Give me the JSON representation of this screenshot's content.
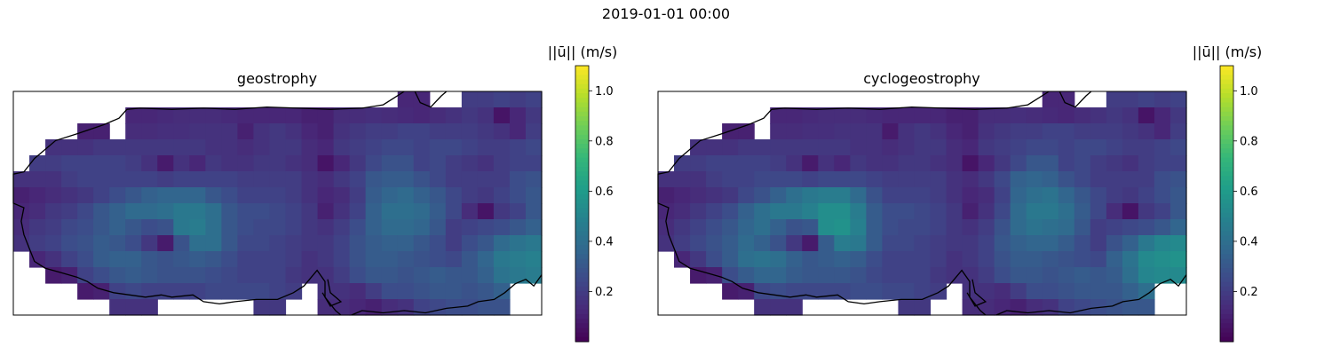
{
  "figure": {
    "suptitle": "2019-01-01 00:00"
  },
  "colors": {
    "viridis": [
      "#440154",
      "#482878",
      "#3e4989",
      "#31688e",
      "#26828e",
      "#1f9e89",
      "#35b779",
      "#6ece58",
      "#b5de2b",
      "#fde725"
    ],
    "coastline": "#000000",
    "frame": "#000000"
  },
  "chart_data": [
    {
      "type": "heatmap",
      "title": "geostrophy",
      "colorbar_label": "||ū|| (m/s)",
      "colorbar_ticks": [
        "0.2",
        "0.4",
        "0.6",
        "0.8",
        "1.0"
      ],
      "clim": [
        0.0,
        1.1
      ],
      "rows": 14,
      "cols": 33,
      "values": [
        [
          null,
          null,
          null,
          null,
          null,
          null,
          null,
          null,
          null,
          null,
          null,
          null,
          null,
          null,
          null,
          null,
          null,
          null,
          null,
          null,
          null,
          null,
          null,
          null,
          0.12,
          0.12,
          null,
          null,
          0.2,
          0.2,
          0.22,
          0.2,
          0.22
        ],
        [
          null,
          null,
          null,
          null,
          null,
          null,
          null,
          0.12,
          0.12,
          0.13,
          0.14,
          0.14,
          0.14,
          0.13,
          0.12,
          0.12,
          0.12,
          0.12,
          0.1,
          0.1,
          0.14,
          0.14,
          0.15,
          0.14,
          0.13,
          0.12,
          0.14,
          0.16,
          0.18,
          0.16,
          0.06,
          0.12,
          0.18
        ],
        [
          null,
          null,
          null,
          null,
          0.1,
          0.1,
          null,
          0.14,
          0.14,
          0.15,
          0.15,
          0.16,
          0.16,
          0.16,
          0.1,
          0.16,
          0.18,
          0.16,
          0.12,
          0.1,
          0.16,
          0.18,
          0.2,
          0.2,
          0.22,
          0.22,
          0.2,
          0.2,
          0.2,
          0.18,
          0.16,
          0.12,
          0.2
        ],
        [
          null,
          null,
          0.16,
          0.16,
          0.16,
          0.18,
          0.18,
          0.18,
          0.18,
          0.18,
          0.18,
          0.18,
          0.16,
          0.16,
          0.14,
          0.16,
          0.18,
          0.18,
          0.14,
          0.12,
          0.18,
          0.2,
          0.22,
          0.24,
          0.24,
          0.22,
          0.24,
          0.24,
          0.22,
          0.2,
          0.2,
          0.22,
          0.24
        ],
        [
          null,
          0.2,
          0.2,
          0.22,
          0.22,
          0.22,
          0.22,
          0.2,
          0.16,
          0.08,
          0.16,
          0.12,
          0.18,
          0.16,
          0.16,
          0.18,
          0.18,
          0.16,
          0.14,
          0.06,
          0.12,
          0.18,
          0.24,
          0.28,
          0.28,
          0.22,
          0.24,
          0.2,
          0.18,
          0.16,
          0.2,
          0.22,
          0.22
        ],
        [
          0.16,
          0.16,
          0.16,
          0.2,
          0.22,
          0.22,
          0.22,
          0.22,
          0.22,
          0.2,
          0.22,
          0.22,
          0.22,
          0.22,
          0.2,
          0.2,
          0.2,
          0.2,
          0.16,
          0.14,
          0.18,
          0.22,
          0.3,
          0.32,
          0.32,
          0.28,
          0.24,
          0.2,
          0.2,
          0.2,
          0.2,
          0.26,
          0.28
        ],
        [
          0.1,
          0.12,
          0.14,
          0.16,
          0.18,
          0.22,
          0.26,
          0.3,
          0.34,
          0.36,
          0.36,
          0.36,
          0.3,
          0.26,
          0.22,
          0.22,
          0.22,
          0.2,
          0.16,
          0.12,
          0.14,
          0.2,
          0.32,
          0.36,
          0.38,
          0.34,
          0.3,
          0.24,
          0.2,
          0.18,
          0.22,
          0.26,
          0.3
        ],
        [
          0.12,
          0.14,
          0.18,
          0.2,
          0.24,
          0.3,
          0.34,
          0.38,
          0.38,
          0.4,
          0.44,
          0.44,
          0.4,
          0.3,
          0.26,
          0.26,
          0.24,
          0.22,
          0.18,
          0.1,
          0.16,
          0.22,
          0.34,
          0.4,
          0.4,
          0.38,
          0.32,
          0.24,
          0.14,
          0.06,
          0.18,
          0.22,
          0.3
        ],
        [
          0.14,
          0.18,
          0.2,
          0.24,
          0.26,
          0.3,
          0.34,
          0.3,
          0.26,
          0.28,
          0.44,
          0.46,
          0.4,
          0.3,
          0.26,
          0.24,
          0.24,
          0.22,
          0.18,
          0.16,
          0.2,
          0.26,
          0.34,
          0.38,
          0.38,
          0.36,
          0.3,
          0.2,
          0.22,
          0.24,
          0.26,
          0.3,
          0.34
        ],
        [
          0.16,
          0.2,
          0.22,
          0.26,
          0.28,
          0.32,
          0.3,
          0.26,
          0.18,
          0.08,
          0.28,
          0.4,
          0.4,
          0.3,
          0.24,
          0.24,
          0.22,
          0.2,
          0.18,
          0.18,
          0.22,
          0.28,
          0.32,
          0.34,
          0.34,
          0.3,
          0.26,
          0.2,
          0.26,
          0.3,
          0.38,
          0.42,
          0.44
        ],
        [
          null,
          0.12,
          0.16,
          0.22,
          0.26,
          0.32,
          0.34,
          0.34,
          0.3,
          0.28,
          0.3,
          0.32,
          0.3,
          0.26,
          0.22,
          0.22,
          0.22,
          0.2,
          0.16,
          0.18,
          0.22,
          0.28,
          0.32,
          0.32,
          0.3,
          0.28,
          0.26,
          0.24,
          0.3,
          0.36,
          0.44,
          0.46,
          0.48
        ],
        [
          null,
          null,
          0.08,
          0.1,
          0.22,
          0.26,
          0.3,
          0.32,
          0.3,
          0.28,
          0.28,
          0.28,
          0.26,
          0.24,
          0.22,
          0.22,
          0.22,
          0.18,
          0.16,
          0.16,
          0.2,
          0.26,
          0.3,
          0.3,
          0.28,
          0.3,
          0.32,
          0.3,
          0.3,
          0.34,
          0.42,
          0.44,
          0.46
        ],
        [
          null,
          null,
          null,
          null,
          0.08,
          0.1,
          0.22,
          0.24,
          0.22,
          0.22,
          0.22,
          0.22,
          0.24,
          0.24,
          0.24,
          0.24,
          0.22,
          0.2,
          null,
          0.16,
          0.16,
          0.14,
          0.2,
          0.26,
          0.26,
          0.28,
          0.3,
          0.3,
          0.28,
          0.3,
          0.34,
          null,
          null
        ],
        [
          null,
          null,
          null,
          null,
          null,
          null,
          0.16,
          0.16,
          0.16,
          null,
          null,
          null,
          null,
          null,
          null,
          0.18,
          0.18,
          null,
          null,
          0.14,
          0.14,
          0.12,
          0.1,
          0.14,
          0.16,
          0.22,
          0.24,
          0.26,
          0.26,
          0.28,
          0.28,
          null,
          null
        ]
      ]
    },
    {
      "type": "heatmap",
      "title": "cyclogeostrophy",
      "colorbar_label": "||ū|| (m/s)",
      "colorbar_ticks": [
        "0.2",
        "0.4",
        "0.6",
        "0.8",
        "1.0"
      ],
      "clim": [
        0.0,
        1.1
      ],
      "rows": 14,
      "cols": 33,
      "values": [
        [
          null,
          null,
          null,
          null,
          null,
          null,
          null,
          null,
          null,
          null,
          null,
          null,
          null,
          null,
          null,
          null,
          null,
          null,
          null,
          null,
          null,
          null,
          null,
          null,
          0.12,
          0.12,
          null,
          null,
          0.2,
          0.2,
          0.22,
          0.2,
          0.22
        ],
        [
          null,
          null,
          null,
          null,
          null,
          null,
          null,
          0.12,
          0.12,
          0.13,
          0.14,
          0.14,
          0.14,
          0.13,
          0.12,
          0.12,
          0.12,
          0.12,
          0.1,
          0.1,
          0.14,
          0.14,
          0.15,
          0.14,
          0.13,
          0.12,
          0.14,
          0.16,
          0.18,
          0.16,
          0.06,
          0.12,
          0.18
        ],
        [
          null,
          null,
          null,
          null,
          0.1,
          0.1,
          null,
          0.14,
          0.14,
          0.15,
          0.15,
          0.16,
          0.16,
          0.16,
          0.08,
          0.16,
          0.18,
          0.16,
          0.12,
          0.1,
          0.16,
          0.18,
          0.2,
          0.2,
          0.22,
          0.22,
          0.2,
          0.2,
          0.2,
          0.18,
          0.16,
          0.12,
          0.2
        ],
        [
          null,
          null,
          0.16,
          0.16,
          0.16,
          0.18,
          0.18,
          0.18,
          0.18,
          0.18,
          0.18,
          0.18,
          0.16,
          0.16,
          0.14,
          0.16,
          0.18,
          0.18,
          0.14,
          0.12,
          0.18,
          0.2,
          0.22,
          0.24,
          0.24,
          0.22,
          0.24,
          0.24,
          0.22,
          0.2,
          0.2,
          0.22,
          0.24
        ],
        [
          null,
          0.2,
          0.2,
          0.22,
          0.22,
          0.22,
          0.22,
          0.2,
          0.16,
          0.08,
          0.16,
          0.12,
          0.18,
          0.16,
          0.16,
          0.18,
          0.18,
          0.16,
          0.14,
          0.06,
          0.12,
          0.18,
          0.24,
          0.3,
          0.3,
          0.22,
          0.24,
          0.2,
          0.18,
          0.16,
          0.2,
          0.22,
          0.22
        ],
        [
          0.16,
          0.16,
          0.16,
          0.2,
          0.22,
          0.22,
          0.24,
          0.24,
          0.24,
          0.22,
          0.24,
          0.24,
          0.24,
          0.22,
          0.2,
          0.2,
          0.2,
          0.2,
          0.16,
          0.14,
          0.18,
          0.24,
          0.34,
          0.36,
          0.34,
          0.28,
          0.24,
          0.2,
          0.2,
          0.2,
          0.2,
          0.26,
          0.28
        ],
        [
          0.1,
          0.12,
          0.14,
          0.16,
          0.18,
          0.24,
          0.28,
          0.34,
          0.4,
          0.44,
          0.46,
          0.46,
          0.38,
          0.28,
          0.22,
          0.22,
          0.22,
          0.2,
          0.16,
          0.12,
          0.14,
          0.22,
          0.36,
          0.4,
          0.42,
          0.36,
          0.3,
          0.24,
          0.2,
          0.18,
          0.22,
          0.26,
          0.3
        ],
        [
          0.12,
          0.14,
          0.18,
          0.22,
          0.26,
          0.34,
          0.4,
          0.44,
          0.44,
          0.48,
          0.54,
          0.54,
          0.46,
          0.32,
          0.26,
          0.26,
          0.24,
          0.22,
          0.18,
          0.1,
          0.16,
          0.24,
          0.38,
          0.44,
          0.44,
          0.4,
          0.32,
          0.24,
          0.14,
          0.06,
          0.18,
          0.22,
          0.3
        ],
        [
          0.14,
          0.18,
          0.22,
          0.26,
          0.3,
          0.36,
          0.4,
          0.34,
          0.28,
          0.3,
          0.54,
          0.56,
          0.48,
          0.32,
          0.26,
          0.24,
          0.24,
          0.22,
          0.18,
          0.16,
          0.2,
          0.28,
          0.38,
          0.42,
          0.4,
          0.38,
          0.3,
          0.2,
          0.22,
          0.24,
          0.26,
          0.3,
          0.36
        ],
        [
          0.16,
          0.2,
          0.24,
          0.28,
          0.32,
          0.38,
          0.34,
          0.28,
          0.18,
          0.08,
          0.32,
          0.46,
          0.44,
          0.32,
          0.24,
          0.24,
          0.22,
          0.2,
          0.18,
          0.18,
          0.22,
          0.3,
          0.34,
          0.36,
          0.36,
          0.32,
          0.26,
          0.2,
          0.28,
          0.34,
          0.44,
          0.5,
          0.52
        ],
        [
          null,
          0.12,
          0.18,
          0.26,
          0.32,
          0.4,
          0.42,
          0.4,
          0.34,
          0.3,
          0.32,
          0.34,
          0.32,
          0.26,
          0.22,
          0.22,
          0.22,
          0.2,
          0.16,
          0.18,
          0.22,
          0.28,
          0.32,
          0.32,
          0.3,
          0.28,
          0.26,
          0.24,
          0.34,
          0.42,
          0.52,
          0.54,
          0.56
        ],
        [
          null,
          null,
          0.08,
          0.1,
          0.26,
          0.32,
          0.36,
          0.36,
          0.32,
          0.3,
          0.3,
          0.3,
          0.28,
          0.24,
          0.22,
          0.22,
          0.22,
          0.18,
          0.16,
          0.16,
          0.2,
          0.26,
          0.3,
          0.3,
          0.28,
          0.3,
          0.32,
          0.3,
          0.32,
          0.4,
          0.5,
          0.52,
          0.52
        ],
        [
          null,
          null,
          null,
          null,
          0.08,
          0.1,
          0.24,
          0.26,
          0.24,
          0.24,
          0.24,
          0.24,
          0.26,
          0.26,
          0.24,
          0.24,
          0.22,
          0.2,
          null,
          0.16,
          0.16,
          0.14,
          0.2,
          0.26,
          0.26,
          0.28,
          0.3,
          0.3,
          0.3,
          0.34,
          0.4,
          null,
          null
        ],
        [
          null,
          null,
          null,
          null,
          null,
          null,
          0.16,
          0.16,
          0.16,
          null,
          null,
          null,
          null,
          null,
          null,
          0.18,
          0.18,
          null,
          null,
          0.14,
          0.14,
          0.12,
          0.1,
          0.14,
          0.16,
          0.22,
          0.24,
          0.26,
          0.28,
          0.3,
          0.3,
          null,
          null
        ]
      ]
    }
  ]
}
